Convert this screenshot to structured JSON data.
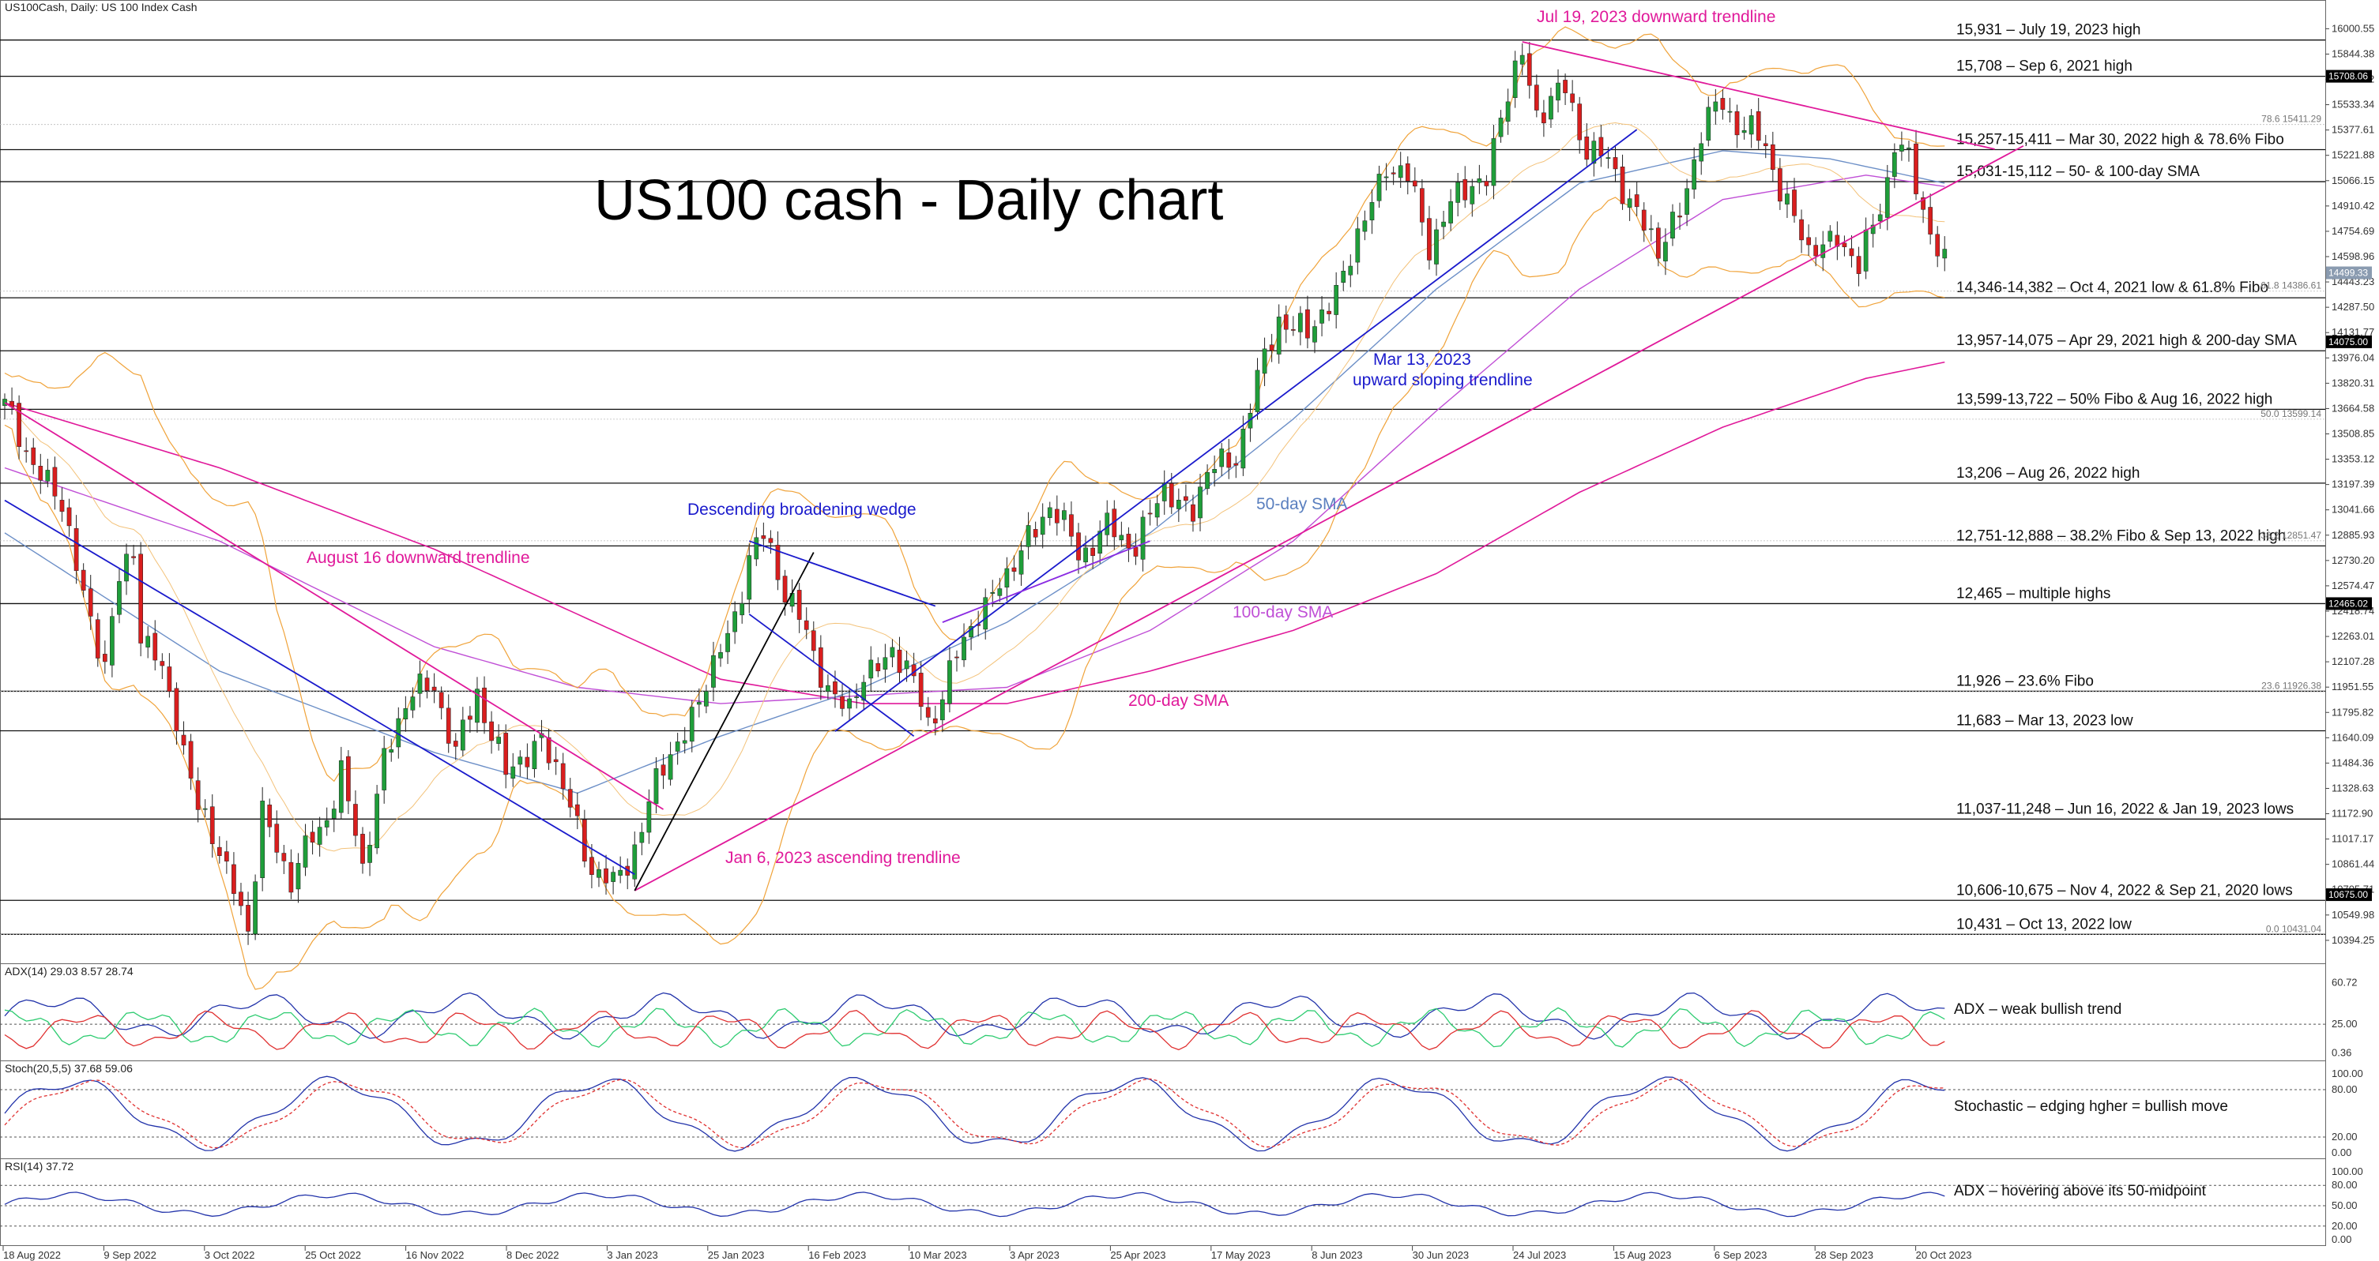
{
  "chart_data": {
    "type": "candlestick",
    "title": "US100 cash - Daily chart",
    "header": "US100Cash, Daily:  US 100 Index Cash",
    "price_axis": {
      "ticks": [
        16000.55,
        15844.38,
        15689.22,
        15533.34,
        15377.61,
        15221.88,
        15066.15,
        14910.42,
        14754.69,
        14598.96,
        14443.23,
        14287.5,
        14131.77,
        13976.04,
        13820.31,
        13664.58,
        13508.85,
        13353.12,
        13197.39,
        13041.66,
        12885.93,
        12730.2,
        12574.47,
        12418.74,
        12263.01,
        12107.28,
        11951.55,
        11795.82,
        11640.09,
        11484.36,
        11328.63,
        11172.9,
        11017.17,
        10861.44,
        10705.71,
        10549.98,
        10394.25
      ],
      "ylim": [
        10350,
        16080
      ]
    },
    "price_tags": [
      {
        "value": 15708.06,
        "label": "15708.06",
        "color": "#000000"
      },
      {
        "value": 14499.33,
        "label": "14499.33",
        "color": "#8a9bb0"
      },
      {
        "value": 14075.0,
        "label": "14075.00",
        "color": "#000000"
      },
      {
        "value": 12465.02,
        "label": "12465.02",
        "color": "#000000"
      },
      {
        "value": 10675.0,
        "label": "10675.00",
        "color": "#000000"
      }
    ],
    "fib_labels": [
      {
        "value": 15411.29,
        "label": "78.6 15411.29"
      },
      {
        "value": 14386.61,
        "label": "61.8 14386.61"
      },
      {
        "value": 13599.14,
        "label": "50.0 13599.14"
      },
      {
        "value": 12851.47,
        "label": "38.2 12851.47"
      },
      {
        "value": 11926.38,
        "label": "23.6 11926.38"
      },
      {
        "value": 10431.04,
        "label": "0.0 10431.04"
      }
    ],
    "levels": [
      {
        "value": 15931,
        "label": "15,931 – July 19, 2023 high"
      },
      {
        "value": 15708,
        "label": "15,708 – Sep 6, 2021 high"
      },
      {
        "value": 15257,
        "label": "15,257-15,411 – Mar 30, 2022 high & 78.6% Fibo"
      },
      {
        "value": 15060,
        "label": "15,031-15,112 – 50- & 100-day SMA"
      },
      {
        "value": 14346,
        "label": "14,346-14,382 – Oct 4, 2021 low & 61.8% Fibo"
      },
      {
        "value": 14020,
        "label": "13,957-14,075 – Apr 29, 2021 high & 200-day SMA"
      },
      {
        "value": 13660,
        "label": "13,599-13,722 – 50% Fibo & Aug 16, 2022 high"
      },
      {
        "value": 13206,
        "label": "13,206 – Aug 26, 2022 high"
      },
      {
        "value": 12820,
        "label": "12,751-12,888 – 38.2% Fibo & Sep 13, 2022 high"
      },
      {
        "value": 12465,
        "label": "12,465 – multiple highs"
      },
      {
        "value": 11926,
        "label": "11,926 – 23.6% Fibo"
      },
      {
        "value": 11683,
        "label": "11,683 – Mar 13, 2023 low"
      },
      {
        "value": 11140,
        "label": "11,037-11,248 – Jun 16, 2022 & Jan 19, 2023 lows"
      },
      {
        "value": 10640,
        "label": "10,606-10,675 – Nov 4, 2022 & Sep 21, 2020 lows"
      },
      {
        "value": 10431,
        "label": "10,431 – Oct 13, 2022 low"
      }
    ],
    "annotations": {
      "jul19": "Jul 19, 2023 downward trendline",
      "aug16": "August 16  downward trendline",
      "wedge": "Descending broadening wedge",
      "mar13a": "Mar 13, 2023",
      "mar13b": "upward sloping trendline",
      "jan6": "Jan 6, 2023 ascending trendline",
      "sma50": "50-day SMA",
      "sma100": "100-day SMA",
      "sma200": "200-day SMA"
    },
    "x_axis_labels": [
      "18 Aug 2022",
      "9 Sep 2022",
      "3 Oct 2022",
      "25 Oct 2022",
      "16 Nov 2022",
      "8 Dec 2022",
      "3 Jan 2023",
      "25 Jan 2023",
      "16 Feb 2023",
      "10 Mar 2023",
      "3 Apr 2023",
      "25 Apr 2023",
      "17 May 2023",
      "8 Jun 2023",
      "30 Jun 2023",
      "24 Jul 2023",
      "15 Aug 2023",
      "6 Sep 2023",
      "28 Sep 2023",
      "20 Oct 2023"
    ],
    "candle_path": [
      [
        0,
        13650
      ],
      [
        6,
        13200
      ],
      [
        8,
        13050
      ],
      [
        14,
        12050
      ],
      [
        16,
        12600
      ],
      [
        18,
        12850
      ],
      [
        19,
        12300
      ],
      [
        24,
        11800
      ],
      [
        27,
        11200
      ],
      [
        32,
        10750
      ],
      [
        34,
        10450
      ],
      [
        36,
        11150
      ],
      [
        40,
        10800
      ],
      [
        44,
        11050
      ],
      [
        47,
        11450
      ],
      [
        50,
        10800
      ],
      [
        53,
        11550
      ],
      [
        57,
        11900
      ],
      [
        60,
        12000
      ],
      [
        63,
        11500
      ],
      [
        66,
        11950
      ],
      [
        70,
        11400
      ],
      [
        75,
        11650
      ],
      [
        80,
        11100
      ],
      [
        82,
        10850
      ],
      [
        85,
        10700
      ],
      [
        88,
        11000
      ],
      [
        93,
        11550
      ],
      [
        97,
        11850
      ],
      [
        102,
        12400
      ],
      [
        104,
        12750
      ],
      [
        106,
        12850
      ],
      [
        110,
        12500
      ],
      [
        113,
        12100
      ],
      [
        118,
        11800
      ],
      [
        120,
        12000
      ],
      [
        124,
        12200
      ],
      [
        127,
        11950
      ],
      [
        129,
        11750
      ],
      [
        134,
        12200
      ],
      [
        136,
        12450
      ],
      [
        140,
        12600
      ],
      [
        143,
        12900
      ],
      [
        146,
        13050
      ],
      [
        150,
        12800
      ],
      [
        154,
        12900
      ],
      [
        158,
        12850
      ],
      [
        162,
        13150
      ],
      [
        166,
        13050
      ],
      [
        168,
        13250
      ],
      [
        172,
        13400
      ],
      [
        175,
        13800
      ],
      [
        178,
        14250
      ],
      [
        182,
        14100
      ],
      [
        186,
        14400
      ],
      [
        190,
        14800
      ],
      [
        193,
        15200
      ],
      [
        196,
        15050
      ],
      [
        199,
        14700
      ],
      [
        202,
        14900
      ],
      [
        205,
        15050
      ],
      [
        207,
        15100
      ],
      [
        209,
        15450
      ],
      [
        212,
        15850
      ],
      [
        214,
        15500
      ],
      [
        218,
        15600
      ],
      [
        221,
        15300
      ],
      [
        224,
        15150
      ],
      [
        228,
        14900
      ],
      [
        231,
        14600
      ],
      [
        234,
        14900
      ],
      [
        237,
        15350
      ],
      [
        240,
        15550
      ],
      [
        243,
        15400
      ],
      [
        246,
        15250
      ],
      [
        249,
        14950
      ],
      [
        252,
        14600
      ],
      [
        256,
        14750
      ],
      [
        259,
        14500
      ],
      [
        261,
        14800
      ],
      [
        263,
        15100
      ],
      [
        264,
        15300
      ],
      [
        266,
        15150
      ],
      [
        268,
        14900
      ],
      [
        271,
        14560
      ]
    ],
    "sma50": [
      [
        0,
        12900
      ],
      [
        30,
        12050
      ],
      [
        60,
        11550
      ],
      [
        80,
        11300
      ],
      [
        100,
        11650
      ],
      [
        120,
        11950
      ],
      [
        140,
        12350
      ],
      [
        160,
        12900
      ],
      [
        180,
        13600
      ],
      [
        200,
        14400
      ],
      [
        220,
        15050
      ],
      [
        240,
        15250
      ],
      [
        255,
        15200
      ],
      [
        271,
        15050
      ]
    ],
    "sma100": [
      [
        0,
        13300
      ],
      [
        30,
        12850
      ],
      [
        60,
        12200
      ],
      [
        80,
        11950
      ],
      [
        100,
        11850
      ],
      [
        120,
        11900
      ],
      [
        140,
        11950
      ],
      [
        160,
        12300
      ],
      [
        180,
        12850
      ],
      [
        200,
        13650
      ],
      [
        220,
        14400
      ],
      [
        240,
        14950
      ],
      [
        260,
        15100
      ],
      [
        271,
        15030
      ]
    ],
    "sma200": [
      [
        0,
        13700
      ],
      [
        30,
        13300
      ],
      [
        60,
        12800
      ],
      [
        80,
        12400
      ],
      [
        100,
        12000
      ],
      [
        120,
        11850
      ],
      [
        140,
        11850
      ],
      [
        160,
        12050
      ],
      [
        180,
        12300
      ],
      [
        200,
        12650
      ],
      [
        220,
        13150
      ],
      [
        240,
        13550
      ],
      [
        260,
        13850
      ],
      [
        271,
        13950
      ]
    ],
    "adx": {
      "header": "ADX(14) 29.03 8.57 28.74",
      "ticks": [
        60.72,
        25.0,
        0.36
      ],
      "ylim": [
        0,
        65
      ],
      "level": 25,
      "note": "ADX – weak bullish trend"
    },
    "stoch": {
      "header": "Stoch(20,5,5) 37.68 59.06",
      "ticks": [
        100.0,
        80.0,
        20.0,
        0.0
      ],
      "ylim": [
        0,
        100
      ],
      "note": "Stochastic – edging hgher = bullish move"
    },
    "rsi": {
      "header": "RSI(14) 37.72",
      "ticks": [
        100.0,
        80.0,
        50.0,
        20.0,
        0.0
      ],
      "ylim": [
        0,
        100
      ],
      "note": "ADX – hovering above its 50-midpoint"
    }
  }
}
